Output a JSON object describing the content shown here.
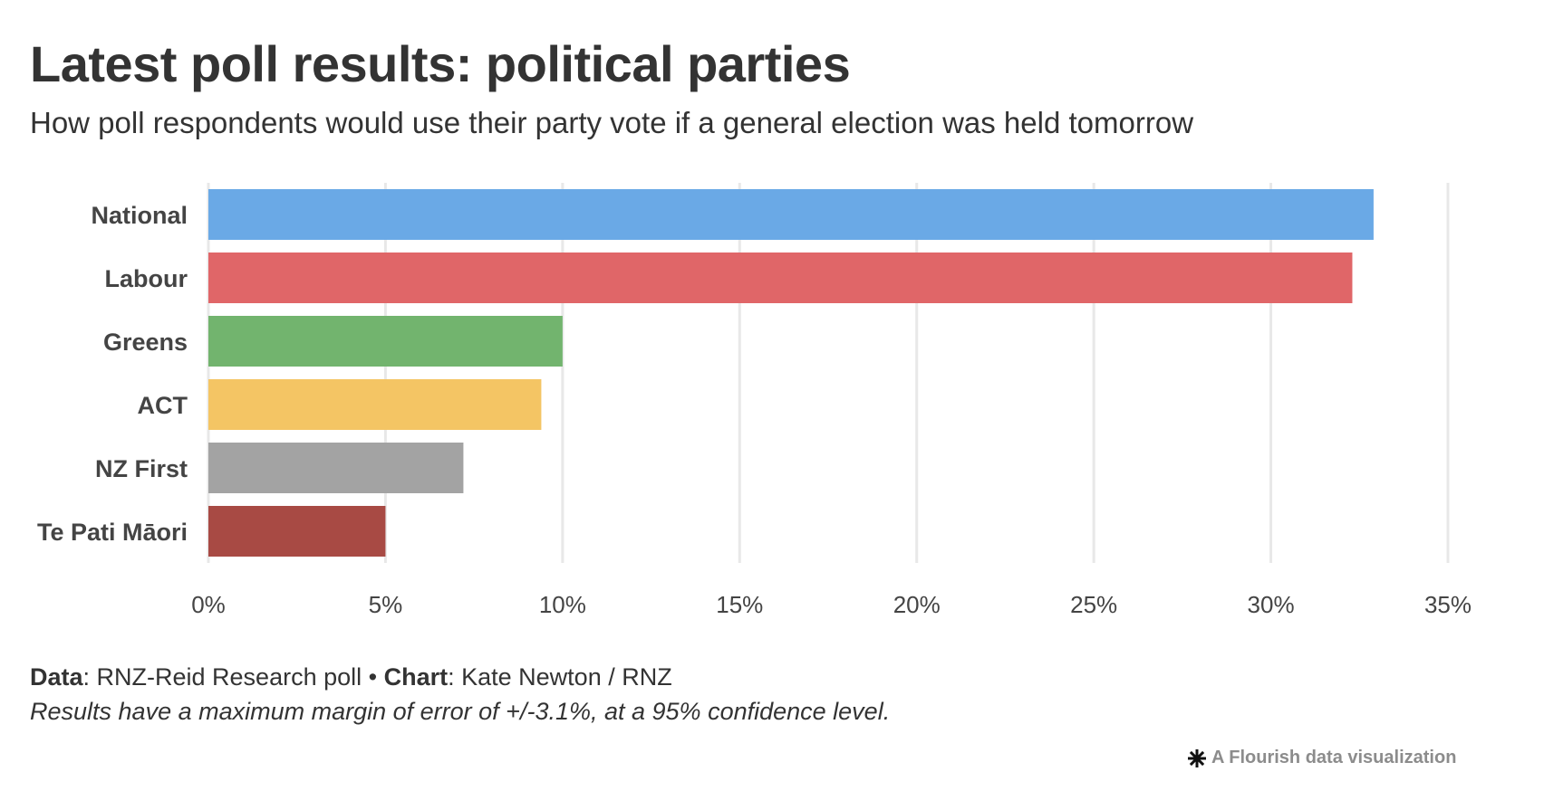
{
  "header": {
    "title": "Latest poll results: political parties",
    "subtitle": "How poll respondents would use their party vote if a general election was held tomorrow"
  },
  "chart_data": {
    "type": "bar",
    "orientation": "horizontal",
    "title": "Latest poll results: political parties",
    "subtitle": "How poll respondents would use their party vote if a general election was held tomorrow",
    "xlabel": "",
    "ylabel": "",
    "categories": [
      "National",
      "Labour",
      "Greens",
      "ACT",
      "NZ First",
      "Te Pati Māori"
    ],
    "values": [
      32.9,
      32.3,
      10.0,
      9.4,
      7.2,
      5.0
    ],
    "colors": [
      "#6aa9e6",
      "#e06668",
      "#72b46e",
      "#f4c564",
      "#a3a3a3",
      "#a84a44"
    ],
    "value_unit": "%",
    "xlim": [
      0,
      35
    ],
    "x_ticks": [
      0,
      5,
      10,
      15,
      20,
      25,
      30,
      35
    ],
    "x_tick_labels": [
      "0%",
      "5%",
      "10%",
      "15%",
      "20%",
      "25%",
      "30%",
      "35%"
    ],
    "grid": true,
    "legend": "none"
  },
  "footer": {
    "data_label": "Data",
    "data_value": ": RNZ-Reid Research poll ",
    "separator": "•",
    "chart_label": "Chart",
    "chart_value": ": Kate Newton / RNZ",
    "note": "Results have a maximum margin of error of +/-3.1%, at a 95% confidence level."
  },
  "credit": {
    "icon": "flourish-star-icon",
    "text": "A Flourish data visualization"
  }
}
